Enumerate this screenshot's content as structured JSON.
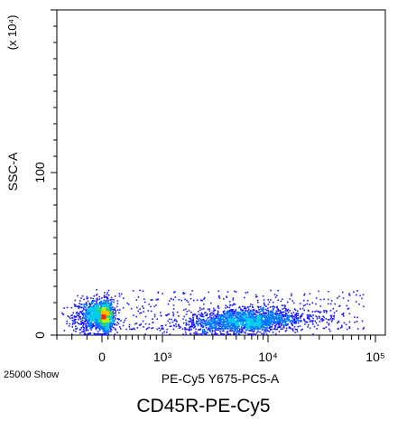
{
  "chart_data": {
    "type": "scatter",
    "title": "CD45R-PE-Cy5",
    "xlabel": "PE-Cy5 Y675-PC5-A",
    "ylabel": "SSC-A",
    "y_multiplier_label": "(x 10⁴)",
    "x_scale": "biexponential (linear near 0, log above 10^3)",
    "x_range": [
      -300,
      100000
    ],
    "y_range": [
      0,
      200
    ],
    "x_tick_labels": [
      {
        "value": 0,
        "text": "0"
      },
      {
        "value": 1000,
        "text": "10³"
      },
      {
        "value": 10000,
        "text": "10⁴"
      },
      {
        "value": 100000,
        "text": "10⁵"
      }
    ],
    "y_tick_labels": [
      {
        "value": 0,
        "text": "0"
      },
      {
        "value": 100,
        "text": "100"
      }
    ],
    "event_count_text": "25000 Show",
    "grid": false,
    "colormap": "density (blue → cyan → green → yellow → red)",
    "populations": [
      {
        "name": "CD45R-negative cluster",
        "x_center": 0,
        "y_center": 12,
        "x_spread_linear": 90,
        "y_spread": 5,
        "density": "high"
      },
      {
        "name": "CD45R-positive cluster",
        "x_center": 6000,
        "y_center": 9,
        "x_spread_log10": 0.28,
        "y_spread": 4,
        "density": "high"
      },
      {
        "name": "sparse background",
        "x_range": [
          -200,
          80000
        ],
        "y_range": [
          4,
          28
        ],
        "density": "low"
      }
    ]
  }
}
